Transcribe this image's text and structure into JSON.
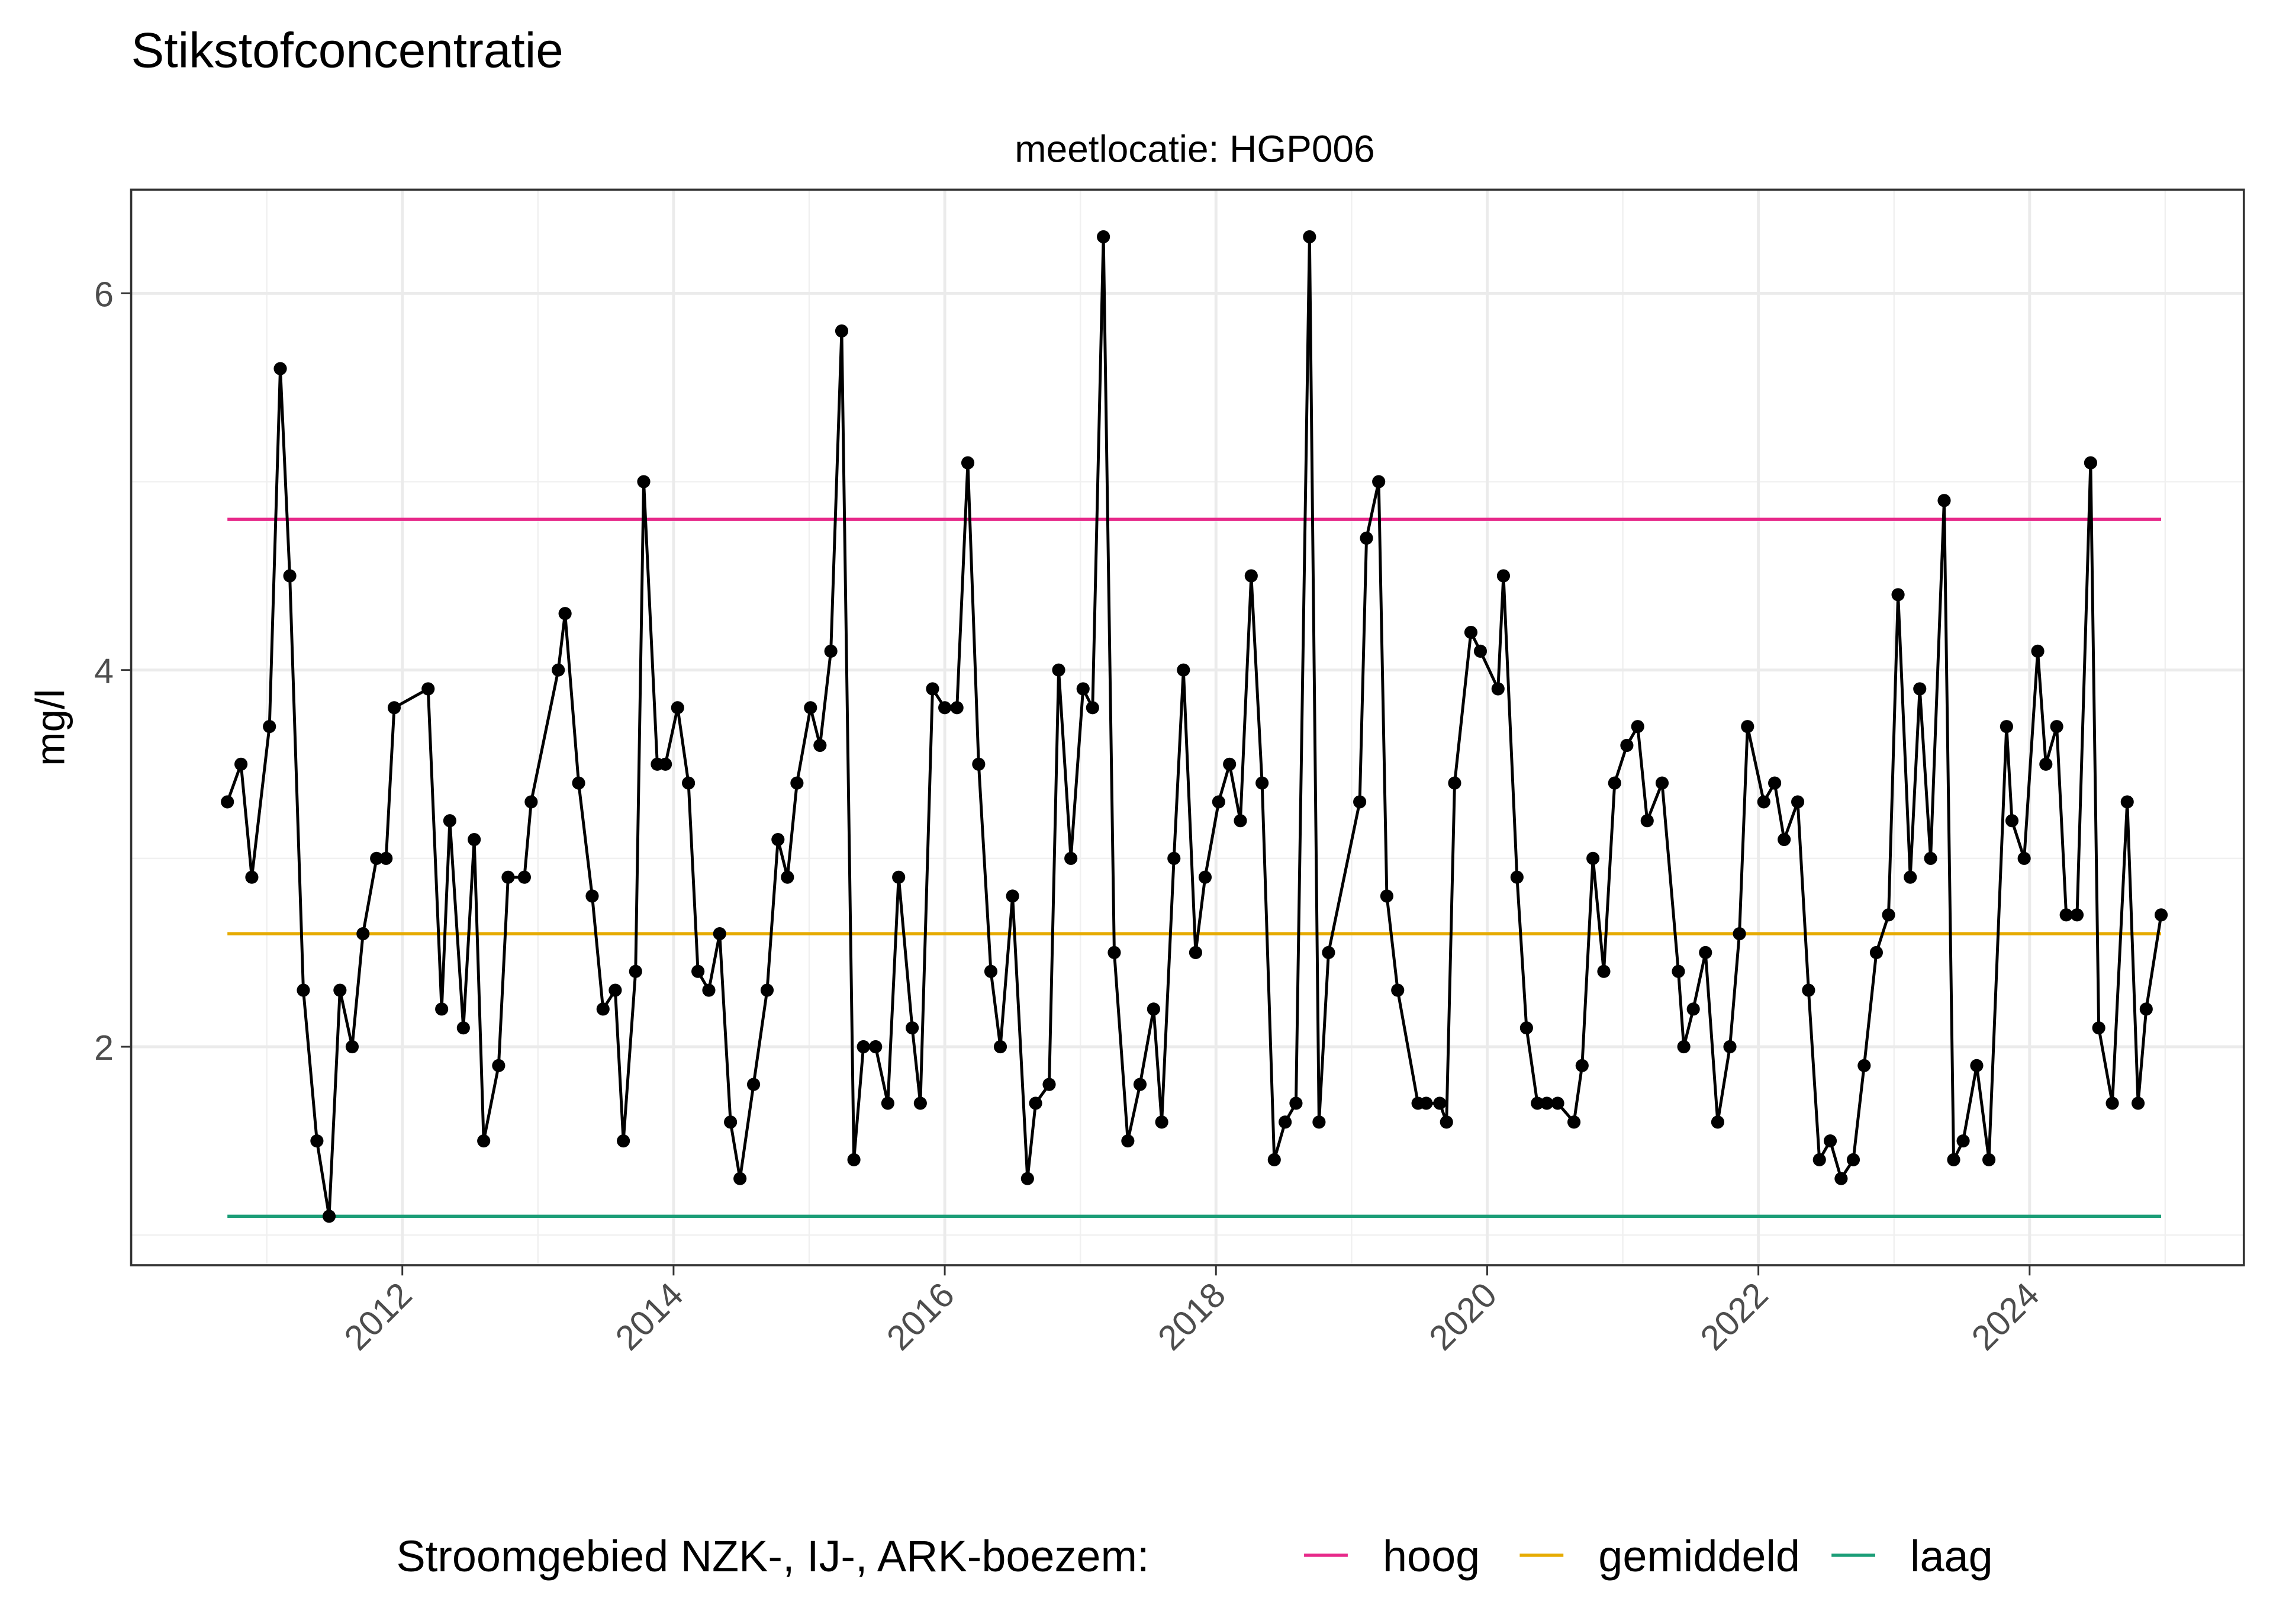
{
  "chart_data": {
    "type": "line",
    "title": "Stikstofconcentratie",
    "subtitle": "meetlocatie: HGP006",
    "y_label": "mg/l",
    "legend_title": "Stroomgebied NZK-, IJ-, ARK-boezem:",
    "legend_position": "bottom",
    "color": "#000000",
    "grid": true,
    "xlim": [
      2010.0,
      2025.58
    ],
    "ylim": [
      0.84,
      6.55
    ],
    "xticks": [
      2012,
      2014,
      2016,
      2018,
      2020,
      2022,
      2024
    ],
    "yticks": [
      2,
      4,
      6
    ],
    "xminor": [
      2011,
      2013,
      2015,
      2017,
      2019,
      2021,
      2023,
      2025
    ],
    "yminor": [
      1,
      3,
      5
    ],
    "x": [
      2010.71,
      2010.81,
      2010.89,
      2011.02,
      2011.1,
      2011.17,
      2011.27,
      2011.37,
      2011.46,
      2011.54,
      2011.63,
      2011.71,
      2011.81,
      2011.88,
      2011.94,
      2012.19,
      2012.29,
      2012.35,
      2012.45,
      2012.53,
      2012.6,
      2012.71,
      2012.78,
      2012.9,
      2012.95,
      2013.15,
      2013.2,
      2013.3,
      2013.4,
      2013.48,
      2013.57,
      2013.63,
      2013.72,
      2013.78,
      2013.88,
      2013.94,
      2014.03,
      2014.11,
      2014.18,
      2014.26,
      2014.34,
      2014.42,
      2014.49,
      2014.59,
      2014.69,
      2014.77,
      2014.84,
      2014.91,
      2015.01,
      2015.08,
      2015.16,
      2015.24,
      2015.33,
      2015.4,
      2015.49,
      2015.58,
      2015.66,
      2015.76,
      2015.82,
      2015.91,
      2016.0,
      2016.09,
      2016.17,
      2016.25,
      2016.34,
      2016.41,
      2016.5,
      2016.61,
      2016.67,
      2016.77,
      2016.84,
      2016.93,
      2017.02,
      2017.09,
      2017.17,
      2017.25,
      2017.35,
      2017.44,
      2017.54,
      2017.6,
      2017.69,
      2017.76,
      2017.85,
      2017.92,
      2018.02,
      2018.1,
      2018.18,
      2018.26,
      2018.34,
      2018.43,
      2018.51,
      2018.59,
      2018.69,
      2018.76,
      2018.83,
      2019.06,
      2019.11,
      2019.2,
      2019.26,
      2019.34,
      2019.49,
      2019.55,
      2019.65,
      2019.7,
      2019.76,
      2019.88,
      2019.95,
      2020.08,
      2020.12,
      2020.22,
      2020.29,
      2020.37,
      2020.44,
      2020.52,
      2020.64,
      2020.7,
      2020.78,
      2020.86,
      2020.94,
      2021.03,
      2021.11,
      2021.18,
      2021.29,
      2021.41,
      2021.45,
      2021.52,
      2021.61,
      2021.7,
      2021.79,
      2021.86,
      2021.92,
      2022.04,
      2022.12,
      2022.19,
      2022.29,
      2022.37,
      2022.45,
      2022.53,
      2022.61,
      2022.7,
      2022.78,
      2022.87,
      2022.96,
      2023.03,
      2023.12,
      2023.19,
      2023.27,
      2023.37,
      2023.44,
      2023.51,
      2023.61,
      2023.7,
      2023.83,
      2023.87,
      2023.96,
      2024.06,
      2024.12,
      2024.2,
      2024.27,
      2024.35,
      2024.45,
      2024.51,
      2024.61,
      2024.72,
      2024.8,
      2024.86,
      2024.97
    ],
    "values": [
      3.3,
      3.5,
      2.9,
      3.7,
      5.6,
      4.5,
      2.3,
      1.5,
      1.1,
      2.3,
      2.0,
      2.6,
      3.0,
      3.0,
      3.8,
      3.9,
      2.2,
      3.2,
      2.1,
      3.1,
      1.5,
      1.9,
      2.9,
      2.9,
      3.3,
      4.0,
      4.3,
      3.4,
      2.8,
      2.2,
      2.3,
      1.5,
      2.4,
      5.0,
      3.5,
      3.5,
      3.8,
      3.4,
      2.4,
      2.3,
      2.6,
      1.6,
      1.3,
      1.8,
      2.3,
      3.1,
      2.9,
      3.4,
      3.8,
      3.6,
      4.1,
      5.8,
      1.4,
      2.0,
      2.0,
      1.7,
      2.9,
      2.1,
      1.7,
      3.9,
      3.8,
      3.8,
      5.1,
      3.5,
      2.4,
      2.0,
      2.8,
      1.3,
      1.7,
      1.8,
      4.0,
      3.0,
      3.9,
      3.8,
      6.3,
      2.5,
      1.5,
      1.8,
      2.2,
      1.6,
      3.0,
      4.0,
      2.5,
      2.9,
      3.3,
      3.5,
      3.2,
      4.5,
      3.4,
      1.4,
      1.6,
      1.7,
      6.3,
      1.6,
      2.5,
      3.3,
      4.7,
      5.0,
      2.8,
      2.3,
      1.7,
      1.7,
      1.7,
      1.6,
      3.4,
      4.2,
      4.1,
      3.9,
      4.5,
      2.9,
      2.1,
      1.7,
      1.7,
      1.7,
      1.6,
      1.9,
      3.0,
      2.4,
      3.4,
      3.6,
      3.7,
      3.2,
      3.4,
      2.4,
      2.0,
      2.2,
      2.5,
      1.6,
      2.0,
      2.6,
      3.7,
      3.3,
      3.4,
      3.1,
      3.3,
      2.3,
      1.4,
      1.5,
      1.3,
      1.4,
      1.9,
      2.5,
      2.7,
      4.4,
      2.9,
      3.9,
      3.0,
      4.9,
      1.4,
      1.5,
      1.9,
      1.4,
      3.7,
      3.2,
      3.0,
      4.1,
      3.5,
      3.7,
      2.7,
      2.7,
      5.1,
      2.1,
      1.7,
      3.3,
      1.7,
      2.2,
      2.7
    ],
    "lines": [
      {
        "name": "hoog",
        "color": "#e7298a",
        "value": 4.8
      },
      {
        "name": "gemiddeld",
        "color": "#e6ab02",
        "value": 2.6
      },
      {
        "name": "laag",
        "color": "#1b9e77",
        "value": 1.1
      }
    ]
  }
}
